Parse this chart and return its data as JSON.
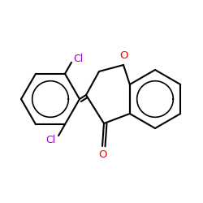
{
  "background_color": "#ffffff",
  "bond_color": "#000000",
  "o_color": "#ff0000",
  "cl_color": "#9900cc",
  "lw": 1.5,
  "figsize": [
    2.5,
    2.5
  ],
  "dpi": 100,
  "xlim": [
    0,
    250
  ],
  "ylim": [
    0,
    250
  ]
}
